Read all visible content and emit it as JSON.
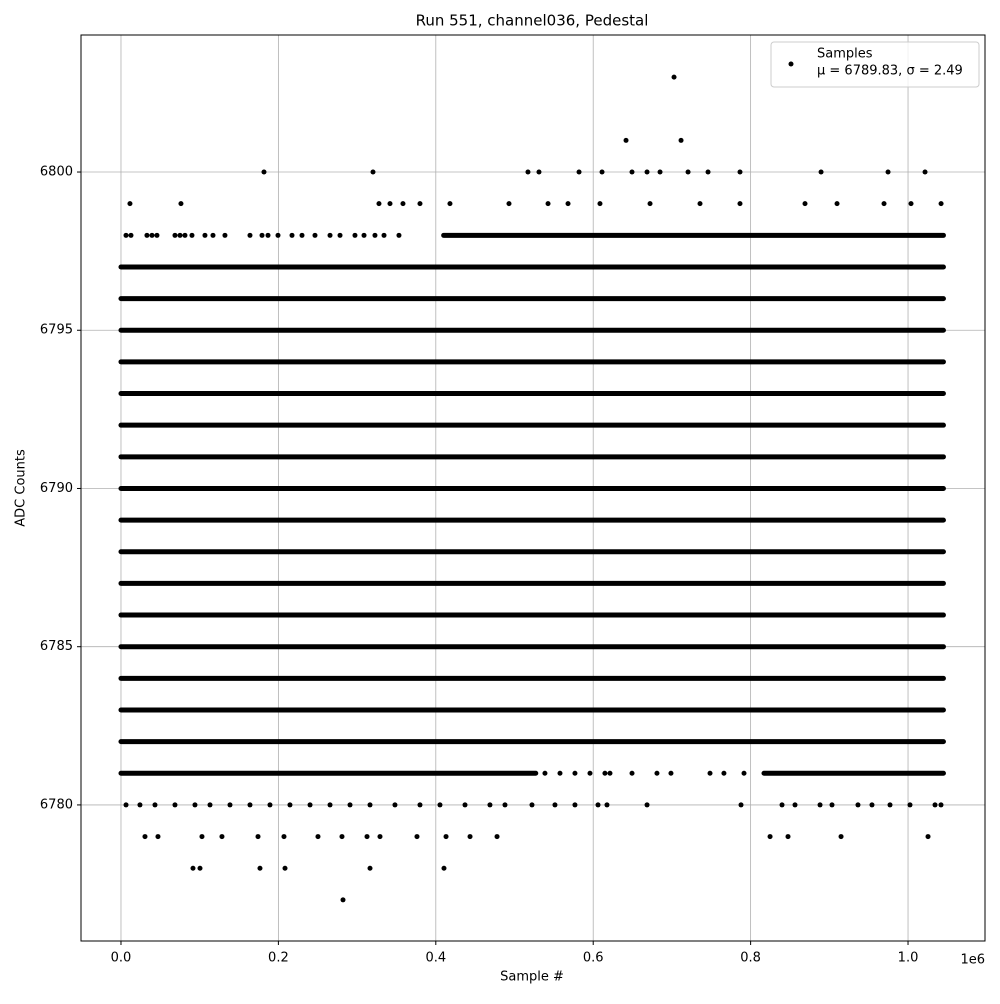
{
  "chart_data": {
    "type": "scatter",
    "title": "Run 551, channel036, Pedestal",
    "x_label": "Sample #",
    "y_label": "ADC Counts",
    "x_offset_label": "1e6",
    "xlim": [
      -50800,
      1097800
    ],
    "ylim": [
      6775.7,
      6804.33
    ],
    "xticks": [
      {
        "value": 0,
        "label": "0.0"
      },
      {
        "value": 200000,
        "label": "0.2"
      },
      {
        "value": 400000,
        "label": "0.4"
      },
      {
        "value": 600000,
        "label": "0.6"
      },
      {
        "value": 800000,
        "label": "0.8"
      },
      {
        "value": 1000000,
        "label": "1.0"
      }
    ],
    "yticks": [
      6780,
      6785,
      6790,
      6795,
      6800
    ],
    "grid": true,
    "legend": "upper right",
    "legend_note": "μ = 6789.83, σ = 2.49",
    "series": [
      {
        "name": "Samples",
        "color": "#000000",
        "x": [
          702700,
          641700,
          711600,
          181700,
          320200,
          517100,
          531100,
          582000,
          611200,
          649300,
          668400,
          684900,
          720500,
          745900,
          786500,
          889500,
          974600,
          1021600,
          11400,
          76200,
          327800,
          341800,
          358300,
          379900,
          418000,
          493000,
          542600,
          568000,
          608600,
          672200,
          735700,
          786500,
          869100,
          909800,
          969500,
          1003800,
          1042000,
          30500,
          47000,
          102900,
          128300,
          174100,
          207100,
          250300,
          280800,
          312600,
          329100,
          376100,
          413000,
          443500,
          477800,
          824700,
          847500,
          914900,
          1025400,
          91500,
          100400,
          176600,
          208400,
          316400,
          410400,
          282100,
          6400,
          24100,
          43200,
          68600,
          94000,
          113100,
          138500,
          163900,
          189300,
          214700,
          240200,
          265600,
          291000,
          316400,
          348100,
          379900,
          405300,
          437100,
          468800,
          487900,
          522200,
          551400,
          576800,
          606100,
          617500,
          668400,
          787800,
          839900,
          856400,
          888200,
          903400,
          936400,
          954200,
          977100,
          1002500,
          1034300,
          1041900,
          538700,
          557800,
          576800,
          595900,
          614900,
          621300,
          649300,
          681000,
          698800,
          748400,
          766100,
          791600,
          6400,
          12700,
          33000,
          39400,
          45700,
          68600,
          75000,
          81300,
          90200,
          106700,
          116900,
          132100,
          163900,
          179200,
          186800,
          199500,
          217300,
          230000,
          246500,
          265600,
          278300,
          297300,
          308800,
          322700,
          334200,
          353200
        ],
        "y": [
          6803,
          6801,
          6801,
          6800,
          6800,
          6800,
          6800,
          6800,
          6800,
          6800,
          6800,
          6800,
          6800,
          6800,
          6800,
          6800,
          6800,
          6800,
          6799,
          6799,
          6799,
          6799,
          6799,
          6799,
          6799,
          6799,
          6799,
          6799,
          6799,
          6799,
          6799,
          6799,
          6799,
          6799,
          6799,
          6799,
          6799,
          6779,
          6779,
          6779,
          6779,
          6779,
          6779,
          6779,
          6779,
          6779,
          6779,
          6779,
          6779,
          6779,
          6779,
          6779,
          6779,
          6779,
          6779,
          6778,
          6778,
          6778,
          6778,
          6778,
          6778,
          6777,
          6780,
          6780,
          6780,
          6780,
          6780,
          6780,
          6780,
          6780,
          6780,
          6780,
          6780,
          6780,
          6780,
          6780,
          6780,
          6780,
          6780,
          6780,
          6780,
          6780,
          6780,
          6780,
          6780,
          6780,
          6780,
          6780,
          6780,
          6780,
          6780,
          6780,
          6780,
          6780,
          6780,
          6780,
          6780,
          6780,
          6780,
          6781,
          6781,
          6781,
          6781,
          6781,
          6781,
          6781,
          6781,
          6781,
          6781,
          6781,
          6781,
          6798,
          6798,
          6798,
          6798,
          6798,
          6798,
          6798,
          6798,
          6798,
          6798,
          6798,
          6798,
          6798,
          6798,
          6798,
          6798,
          6798,
          6798,
          6798,
          6798,
          6798,
          6798,
          6798,
          6798,
          6798,
          6798
        ],
        "bands": [
          {
            "y": 6781,
            "x": [
              0,
              527000
            ]
          },
          {
            "y": 6781,
            "x": [
              817000,
              1045000
            ]
          },
          {
            "y": 6782,
            "x": [
              0,
              1045000
            ]
          },
          {
            "y": 6783,
            "x": [
              0,
              1045000
            ]
          },
          {
            "y": 6784,
            "x": [
              0,
              1045000
            ]
          },
          {
            "y": 6785,
            "x": [
              0,
              1045000
            ]
          },
          {
            "y": 6786,
            "x": [
              0,
              1045000
            ]
          },
          {
            "y": 6787,
            "x": [
              0,
              1045000
            ]
          },
          {
            "y": 6788,
            "x": [
              0,
              1045000
            ]
          },
          {
            "y": 6789,
            "x": [
              0,
              1045000
            ]
          },
          {
            "y": 6790,
            "x": [
              0,
              1045000
            ]
          },
          {
            "y": 6791,
            "x": [
              0,
              1045000
            ]
          },
          {
            "y": 6792,
            "x": [
              0,
              1045000
            ]
          },
          {
            "y": 6793,
            "x": [
              0,
              1045000
            ]
          },
          {
            "y": 6794,
            "x": [
              0,
              1045000
            ]
          },
          {
            "y": 6795,
            "x": [
              0,
              1045000
            ]
          },
          {
            "y": 6796,
            "x": [
              0,
              1045000
            ]
          },
          {
            "y": 6797,
            "x": [
              0,
              1045000
            ]
          },
          {
            "y": 6798,
            "x": [
              410000,
              1045000
            ]
          }
        ]
      }
    ]
  }
}
